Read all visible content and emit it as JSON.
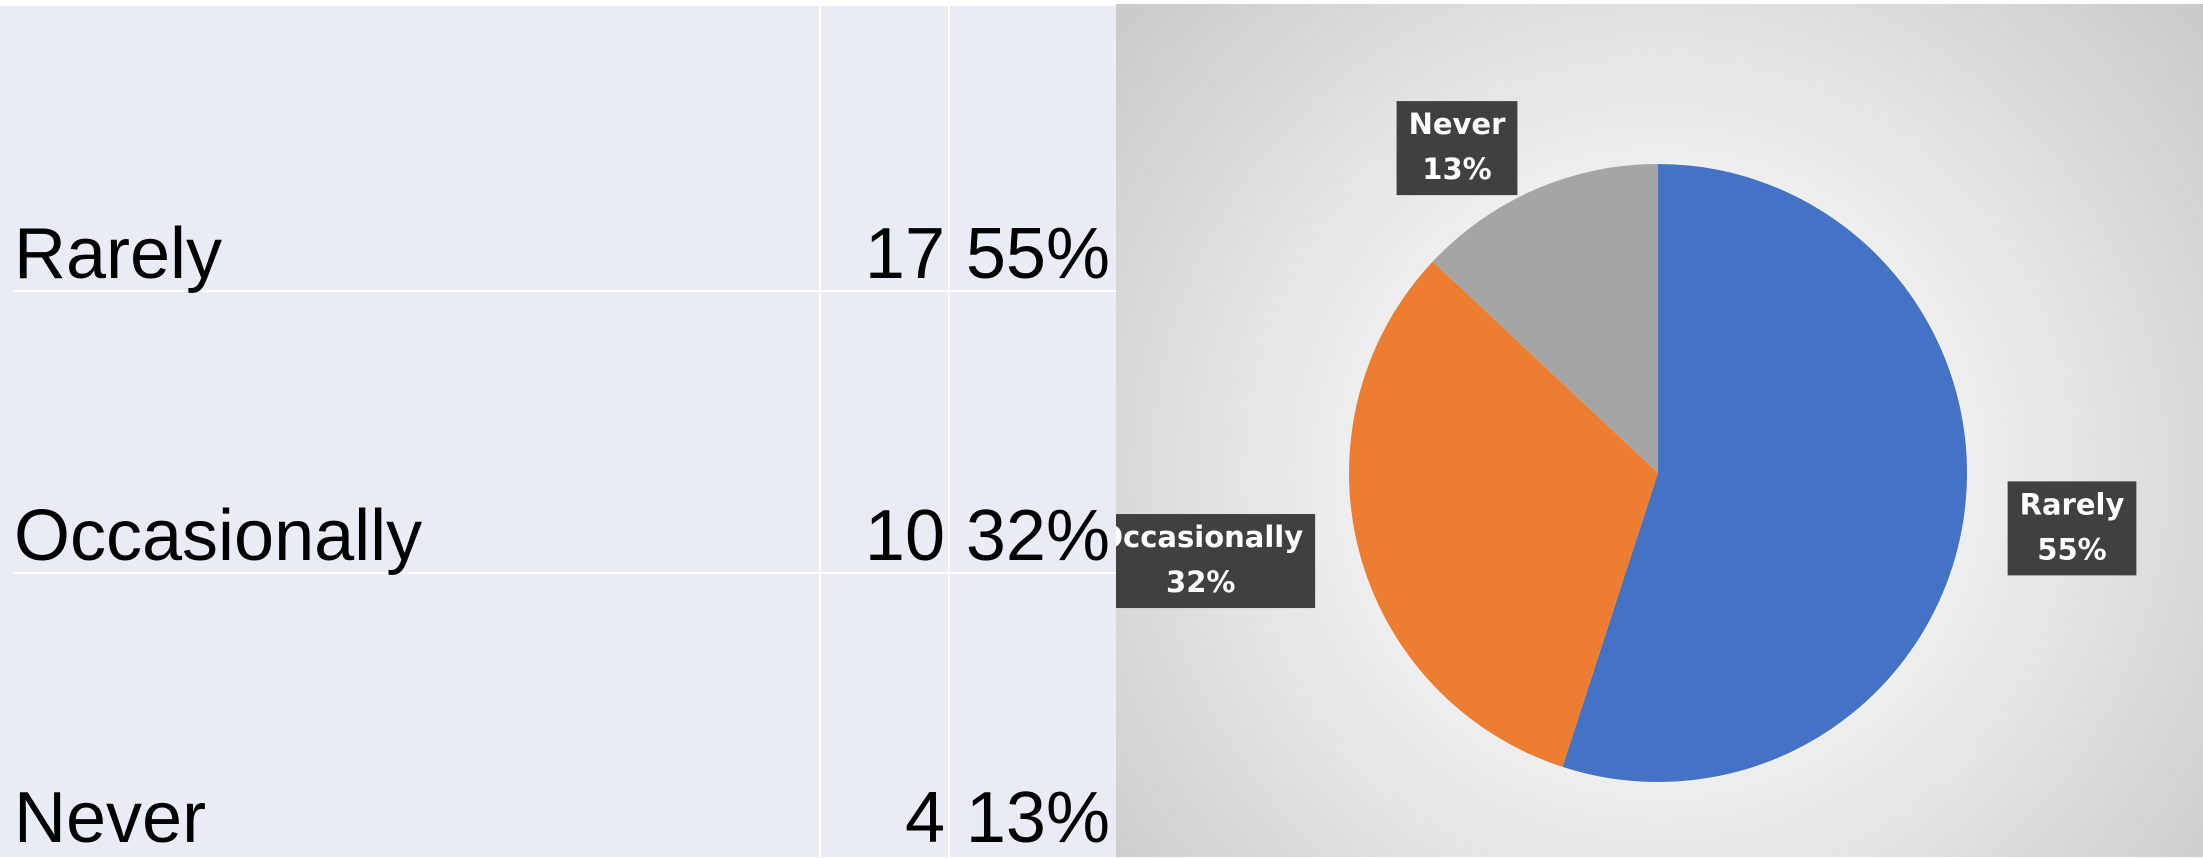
{
  "table": {
    "rows": [
      [
        "Rarely",
        17,
        "55%"
      ],
      [
        "Occasionally",
        10,
        "32%"
      ],
      [
        "Never",
        4,
        "13%"
      ]
    ]
  },
  "chart_data": {
    "type": "pie",
    "categories": [
      "Rarely",
      "Occasionally",
      "Never"
    ],
    "values": [
      55,
      32,
      13
    ],
    "value_labels": [
      "55%",
      "32%",
      "13%"
    ],
    "colors": [
      "#4472c4",
      "#ed7d31",
      "#a5a5a5"
    ]
  }
}
